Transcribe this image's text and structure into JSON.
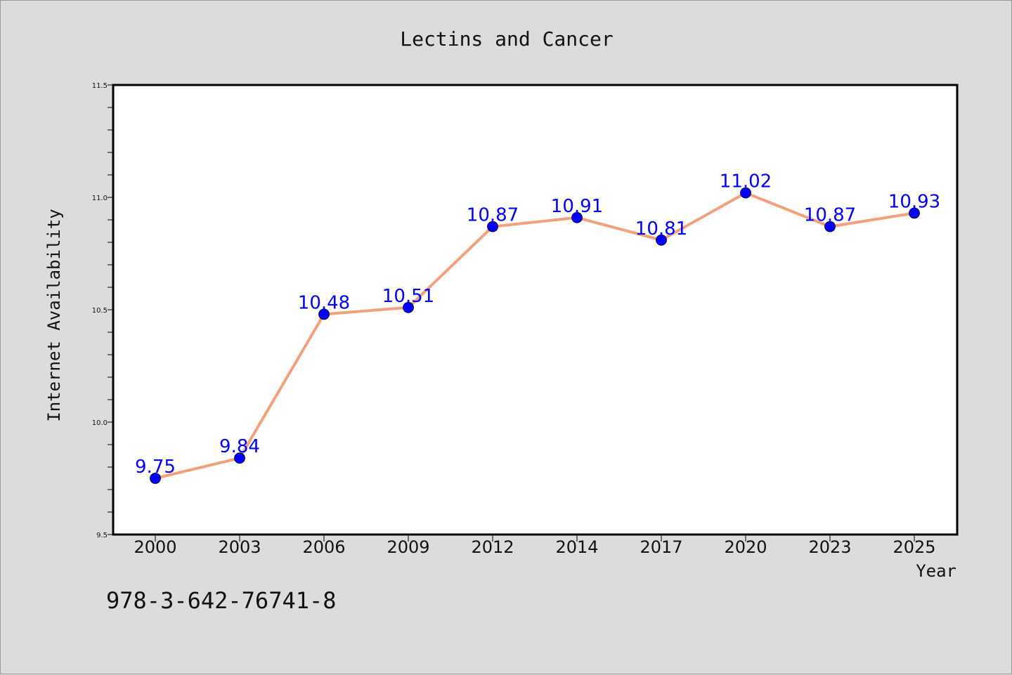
{
  "chart_data": {
    "type": "line",
    "title": "Lectins and Cancer",
    "xlabel": "Year",
    "ylabel": "Internet Availability",
    "categories": [
      "2000",
      "2003",
      "2006",
      "2009",
      "2012",
      "2014",
      "2017",
      "2020",
      "2023",
      "2025"
    ],
    "series": [
      {
        "values": [
          9.75,
          9.84,
          10.48,
          10.51,
          10.87,
          10.91,
          10.81,
          11.02,
          10.87,
          10.93
        ],
        "data_labels": [
          "9.75",
          "9.84",
          "10.48",
          "10.51",
          "10.87",
          "10.91",
          "10.81",
          "11.02",
          "10.87",
          "10.93"
        ],
        "line_color": "#f4a07c",
        "marker_color": "#0000ff"
      }
    ],
    "ylim": [
      9.5,
      11.5
    ],
    "yticks": [
      "9.5",
      "10.0",
      "10.5",
      "11.0",
      "11.5"
    ],
    "grid": false,
    "legend": "none"
  },
  "footer": {
    "isbn": "978-3-642-76741-8"
  },
  "colors": {
    "background": "#dcdcdc",
    "plot_background": "#ffffff",
    "line": "#f4a07c",
    "marker": "#0000ff",
    "data_label": "#0000ff"
  }
}
